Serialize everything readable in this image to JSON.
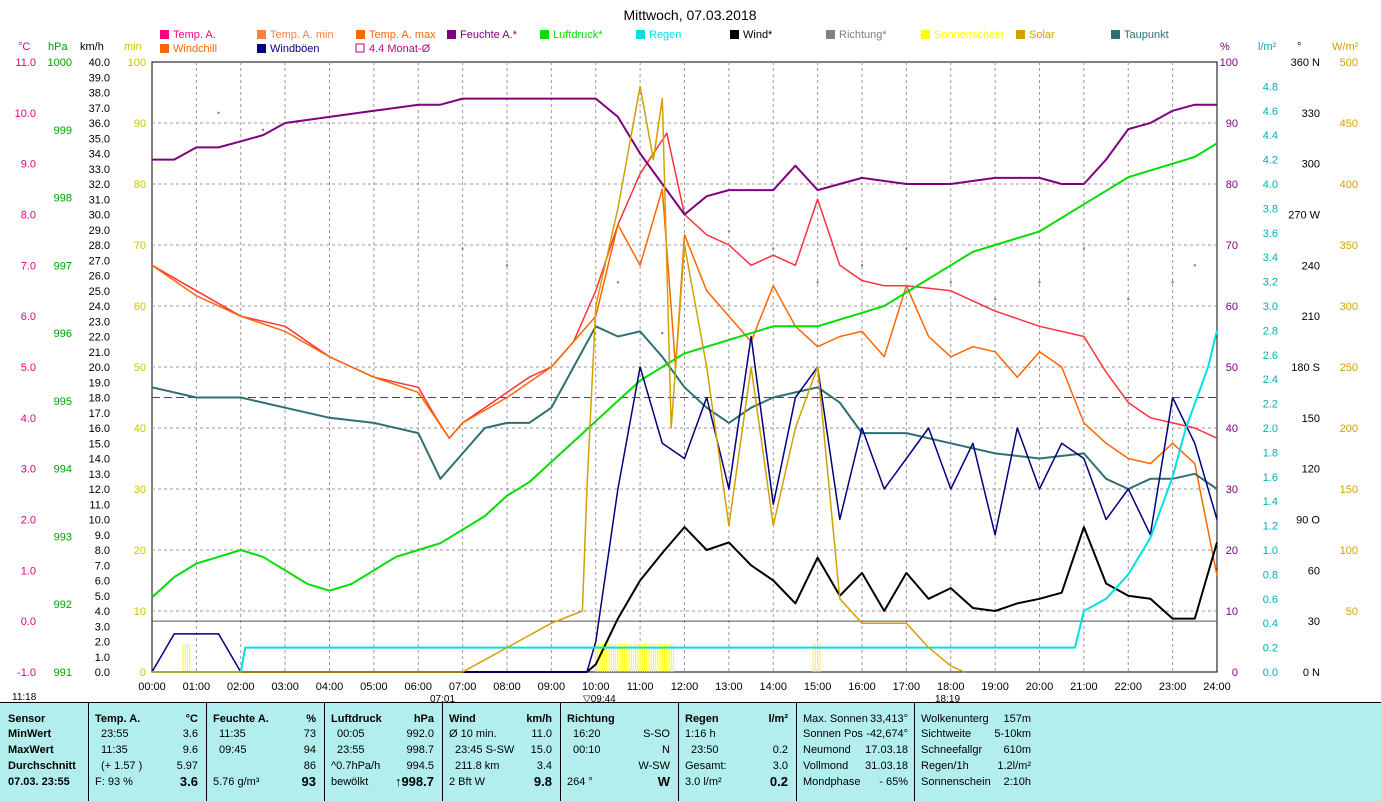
{
  "title": "Mittwoch, 07.03.2018",
  "legend": [
    {
      "label": "Temp. A.",
      "color": "#ff0080"
    },
    {
      "label": "Temp. A. min",
      "color": "#ff8040"
    },
    {
      "label": "Temp. A. max",
      "color": "#ff6600"
    },
    {
      "label": "Feuchte A.*",
      "color": "#800080"
    },
    {
      "label": "Luftdruck*",
      "color": "#00e000"
    },
    {
      "label": "Regen",
      "color": "#00e0e0"
    },
    {
      "label": "Wind*",
      "color": "#000000"
    },
    {
      "label": "Richtung*",
      "color": "#808080"
    },
    {
      "label": "Sonnenschein",
      "color": "#ffff00"
    },
    {
      "label": "Solar",
      "color": "#d4a000"
    },
    {
      "label": "Taupunkt",
      "color": "#2f6f6f"
    },
    {
      "label": "Windchill",
      "color": "#ff6600"
    },
    {
      "label": "Windböen",
      "color": "#000080"
    },
    {
      "label": "4.4 Monat-Ø",
      "color": "#c00080"
    }
  ],
  "axis_units": {
    "temp": "°C",
    "pressure": "hPa",
    "wind": "km/h",
    "sunshine": "min",
    "humidity": "%",
    "rain": "l/m²",
    "direction": "°",
    "solar": "W/m²"
  },
  "chart_data": {
    "type": "line",
    "title": "Mittwoch, 07.03.2018",
    "x_ticks": [
      "00:00",
      "01:00",
      "02:00",
      "03:00",
      "04:00",
      "05:00",
      "06:00",
      "07:00",
      "08:00",
      "09:00",
      "10:00",
      "11:00",
      "12:00",
      "13:00",
      "14:00",
      "15:00",
      "16:00",
      "17:00",
      "18:00",
      "19:00",
      "20:00",
      "21:00",
      "22:00",
      "23:00",
      "24:00"
    ],
    "xlim": [
      0,
      24
    ],
    "axes": {
      "temp": {
        "label": "°C",
        "range": [
          -1.0,
          11.0
        ],
        "ticks": [
          "11.0",
          "10.0",
          "9.0",
          "8.0",
          "7.0",
          "6.0",
          "5.0",
          "4.0",
          "3.0",
          "2.0",
          "1.0",
          "0.0",
          "-1.0"
        ]
      },
      "pressure": {
        "label": "hPa",
        "range": [
          991,
          1000
        ],
        "ticks": [
          "1000",
          "999",
          "998",
          "997",
          "996",
          "995",
          "994",
          "993",
          "992",
          "991"
        ]
      },
      "wind": {
        "label": "km/h",
        "range": [
          0,
          40
        ],
        "ticks": [
          "40.0",
          "39.0",
          "38.0",
          "37.0",
          "36.0",
          "35.0",
          "34.0",
          "33.0",
          "32.0",
          "31.0",
          "30.0",
          "29.0",
          "28.0",
          "27.0",
          "26.0",
          "25.0",
          "24.0",
          "23.0",
          "22.0",
          "21.0",
          "20.0",
          "19.0",
          "18.0",
          "17.0",
          "16.0",
          "15.0",
          "14.0",
          "13.0",
          "12.0",
          "11.0",
          "10.0",
          "9.0",
          "8.0",
          "7.0",
          "6.0",
          "5.0",
          "4.0",
          "3.0",
          "2.0",
          "1.0",
          "0.0"
        ]
      },
      "sunshine": {
        "label": "min",
        "range": [
          0,
          100
        ],
        "ticks": [
          "100",
          "90",
          "80",
          "70",
          "60",
          "50",
          "40",
          "30",
          "20",
          "10",
          "0"
        ]
      },
      "humidity": {
        "label": "%",
        "range": [
          0,
          100
        ],
        "ticks": [
          "100",
          "90",
          "80",
          "70",
          "60",
          "50",
          "40",
          "30",
          "20",
          "10",
          "0"
        ]
      },
      "rain": {
        "label": "l/m²",
        "range": [
          0,
          5.0
        ],
        "ticks": [
          "4.8",
          "4.6",
          "4.4",
          "4.2",
          "4.0",
          "3.8",
          "3.6",
          "3.4",
          "3.2",
          "3.0",
          "2.8",
          "2.6",
          "2.4",
          "2.2",
          "2.0",
          "1.8",
          "1.6",
          "1.4",
          "1.2",
          "1.0",
          "0.8",
          "0.6",
          "0.4",
          "0.2",
          "0.0"
        ]
      },
      "direction": {
        "label": "°",
        "range": [
          0,
          360
        ],
        "ticks": [
          "360 N",
          "330",
          "300",
          "270 W",
          "240",
          "210",
          "180 S",
          "150",
          "120",
          "90 O",
          "60",
          "30",
          "0 N"
        ]
      },
      "solar": {
        "label": "W/m²",
        "range": [
          0,
          500
        ],
        "ticks": [
          "500",
          "450",
          "400",
          "350",
          "300",
          "250",
          "200",
          "150",
          "100",
          "50"
        ]
      }
    },
    "reference_line": {
      "name": "4.4 Monat-Ø",
      "value": 4.4
    },
    "series": [
      {
        "name": "Temp. A.",
        "axis": "temp",
        "color": "#ff3040",
        "x": [
          0,
          1,
          2,
          3,
          3.5,
          4,
          4.5,
          5,
          5.5,
          6,
          6.4,
          6.7,
          7,
          7.5,
          8,
          8.5,
          9,
          9.5,
          10,
          10.5,
          11,
          11.6,
          12,
          12.5,
          13,
          13.5,
          14,
          14.5,
          15,
          15.5,
          16,
          16.5,
          17,
          18,
          19,
          20,
          21,
          21.5,
          22,
          22.5,
          23,
          23.5,
          24
        ],
        "y": [
          7.0,
          6.5,
          6.0,
          5.8,
          5.5,
          5.2,
          5.0,
          4.8,
          4.7,
          4.6,
          4.0,
          3.6,
          3.9,
          4.2,
          4.5,
          4.8,
          5.0,
          5.5,
          6.5,
          7.8,
          8.8,
          9.6,
          8.0,
          7.6,
          7.4,
          7.0,
          7.2,
          7.0,
          8.3,
          7.0,
          6.7,
          6.6,
          6.6,
          6.5,
          6.1,
          5.8,
          5.6,
          4.9,
          4.3,
          4.0,
          3.9,
          3.8,
          3.6
        ]
      },
      {
        "name": "Windchill",
        "axis": "temp",
        "color": "#ff6600",
        "x": [
          0,
          1,
          2,
          3,
          4,
          5,
          6,
          6.7,
          7,
          8,
          9,
          10,
          10.5,
          11,
          11.5,
          11.8,
          12,
          12.5,
          13,
          13.5,
          14,
          14.5,
          15,
          15.5,
          16,
          16.5,
          17,
          17.5,
          18,
          18.5,
          19,
          19.5,
          20,
          20.5,
          21,
          21.5,
          22,
          22.5,
          23,
          23.5,
          24
        ],
        "y": [
          7.0,
          6.4,
          6.0,
          5.7,
          5.2,
          4.8,
          4.5,
          3.6,
          3.9,
          4.4,
          5.0,
          6.0,
          7.8,
          7.0,
          8.5,
          5.0,
          7.6,
          6.5,
          6.0,
          5.5,
          6.6,
          5.8,
          5.4,
          5.6,
          5.7,
          5.2,
          6.6,
          5.6,
          5.2,
          5.4,
          5.3,
          4.8,
          5.3,
          5.0,
          3.9,
          3.5,
          3.2,
          3.1,
          3.5,
          3.1,
          0.9
        ]
      },
      {
        "name": "Taupunkt",
        "axis": "temp",
        "color": "#2f7070",
        "x": [
          0,
          1,
          2,
          3,
          4,
          5,
          6,
          6.5,
          7,
          7.5,
          8,
          8.5,
          9,
          9.5,
          10,
          10.5,
          11,
          11.5,
          12,
          12.5,
          13,
          13.5,
          14,
          14.5,
          15,
          15.5,
          16,
          17,
          18,
          19,
          20,
          21,
          21.5,
          22,
          22.5,
          23,
          23.5,
          24
        ],
        "y": [
          4.6,
          4.4,
          4.4,
          4.2,
          4.0,
          3.9,
          3.7,
          2.8,
          3.3,
          3.8,
          3.9,
          3.9,
          4.2,
          5.0,
          5.8,
          5.6,
          5.7,
          5.2,
          4.6,
          4.2,
          3.9,
          4.2,
          4.4,
          4.5,
          4.6,
          4.3,
          3.7,
          3.7,
          3.5,
          3.3,
          3.2,
          3.3,
          2.8,
          2.6,
          2.8,
          2.8,
          2.9,
          2.6
        ]
      },
      {
        "name": "Feuchte A.",
        "axis": "humidity",
        "color": "#800080",
        "x": [
          0,
          0.5,
          1,
          1.5,
          2,
          2.5,
          3,
          4,
          5,
          6,
          6.5,
          7,
          7.5,
          8,
          8.5,
          9,
          9.5,
          10,
          10.5,
          11,
          11.5,
          12,
          12.5,
          13,
          14,
          14.5,
          15,
          15.5,
          16,
          17,
          18,
          19,
          20,
          20.5,
          21,
          21.5,
          22,
          22.5,
          23,
          23.5,
          24
        ],
        "y": [
          84,
          84,
          86,
          86,
          87,
          88,
          90,
          91,
          92,
          93,
          93,
          94,
          94,
          94,
          94,
          94,
          94,
          94,
          91,
          85,
          80,
          75,
          78,
          79,
          79,
          83,
          79,
          80,
          81,
          80,
          80,
          81,
          81,
          80,
          80,
          84,
          89,
          90,
          92,
          93,
          93
        ]
      },
      {
        "name": "Luftdruck",
        "axis": "pressure",
        "color": "#00dd00",
        "x": [
          0,
          0.5,
          1,
          1.5,
          2,
          2.5,
          3,
          3.5,
          4,
          4.5,
          5,
          5.5,
          6,
          6.5,
          7,
          7.5,
          8,
          8.5,
          9,
          9.5,
          10,
          10.5,
          11,
          11.5,
          12,
          12.5,
          13,
          13.5,
          14,
          14.5,
          15,
          15.5,
          16,
          16.5,
          17,
          17.5,
          18,
          18.5,
          19,
          19.5,
          20,
          20.5,
          21,
          21.5,
          22,
          22.5,
          23,
          23.5,
          24
        ],
        "y": [
          992.1,
          992.4,
          992.6,
          992.7,
          992.8,
          992.7,
          992.5,
          992.3,
          992.2,
          992.3,
          992.5,
          992.7,
          992.8,
          992.9,
          993.1,
          993.3,
          993.6,
          993.8,
          994.1,
          994.4,
          994.7,
          995.0,
          995.3,
          995.5,
          995.7,
          995.8,
          995.9,
          996.0,
          996.1,
          996.1,
          996.1,
          996.2,
          996.3,
          996.4,
          996.6,
          996.8,
          997.0,
          997.2,
          997.3,
          997.4,
          997.5,
          997.7,
          997.9,
          998.1,
          998.3,
          998.4,
          998.5,
          998.6,
          998.8
        ]
      },
      {
        "name": "Wind",
        "axis": "wind",
        "color": "#000000",
        "x": [
          0,
          1,
          2,
          9.8,
          10,
          10.5,
          11,
          11.5,
          12,
          12.5,
          13,
          13.5,
          14,
          14.5,
          15,
          15.5,
          16,
          16.5,
          17,
          17.5,
          18,
          18.5,
          19,
          19.5,
          20,
          20.5,
          21,
          21.5,
          22,
          22.5,
          23,
          23.5,
          24
        ],
        "y": [
          0,
          0,
          0,
          0,
          0.5,
          3.5,
          6.0,
          7.8,
          9.5,
          8.0,
          8.5,
          7.0,
          6.0,
          4.5,
          7.5,
          5.0,
          6.5,
          4.0,
          6.5,
          4.8,
          5.5,
          4.2,
          4.0,
          4.5,
          4.8,
          5.2,
          9.5,
          5.8,
          5.0,
          4.8,
          3.5,
          3.5,
          8.5
        ]
      },
      {
        "name": "Windböen",
        "axis": "wind",
        "color": "#000080",
        "x": [
          0,
          0.5,
          1,
          1.5,
          2,
          9.8,
          10,
          10.5,
          11,
          11.5,
          12,
          12.5,
          13,
          13.5,
          14,
          14.5,
          15,
          15.5,
          16,
          16.5,
          17,
          17.5,
          18,
          18.5,
          19,
          19.5,
          20,
          20.5,
          21,
          21.5,
          22,
          22.5,
          23,
          23.5,
          24
        ],
        "y": [
          0,
          2.5,
          2.5,
          2.5,
          0,
          0,
          2.0,
          12.0,
          20.0,
          15.0,
          14.0,
          18.0,
          12.0,
          22.0,
          11.0,
          18.0,
          20.0,
          10.0,
          16.0,
          12.0,
          14.0,
          16.0,
          12.0,
          15.0,
          9.0,
          16.0,
          12.0,
          15.0,
          14.0,
          10.0,
          12.0,
          9.0,
          18.0,
          15.0,
          10.0
        ]
      },
      {
        "name": "Regen",
        "axis": "rain",
        "color": "#00e0e0",
        "x": [
          0,
          2.0,
          2.1,
          20.8,
          21.0,
          21.5,
          22.0,
          22.5,
          23.0,
          23.3,
          23.6,
          23.8,
          24
        ],
        "y": [
          0,
          0,
          0.2,
          0.2,
          0.5,
          0.6,
          0.8,
          1.1,
          1.6,
          2.0,
          2.3,
          2.5,
          2.8
        ]
      },
      {
        "name": "Solar",
        "axis": "solar",
        "color": "#d4a000",
        "x": [
          0,
          7,
          7.5,
          8,
          8.5,
          9,
          9.7,
          9.8,
          10,
          10.5,
          11,
          11.3,
          11.5,
          11.7,
          12,
          12.5,
          13,
          13.5,
          14,
          14.5,
          15,
          15.5,
          16,
          16.5,
          17,
          17.5,
          18,
          18.3
        ],
        "y": [
          0,
          0,
          10,
          20,
          30,
          40,
          50,
          150,
          300,
          380,
          480,
          420,
          470,
          200,
          350,
          250,
          120,
          250,
          120,
          200,
          250,
          60,
          40,
          40,
          40,
          20,
          5,
          0
        ]
      },
      {
        "name": "Richtung",
        "axis": "direction",
        "color": "#808080",
        "x": [
          1.5,
          2.5,
          7.0,
          8.0,
          10.5,
          11.5,
          13.0,
          14.0,
          15.0,
          16.0,
          17.0,
          18.0,
          19.0,
          20.0,
          21.0,
          22.0,
          23.0,
          23.5
        ],
        "y": [
          330,
          320,
          250,
          240,
          230,
          200,
          260,
          250,
          230,
          240,
          250,
          230,
          220,
          230,
          250,
          220,
          230,
          240
        ]
      }
    ],
    "sunshine_bars": [
      {
        "from": 10.0,
        "to": 11.8,
        "value": 5
      },
      {
        "from": 14.9,
        "to": 15.1,
        "value": 5
      },
      {
        "from": 0.7,
        "to": 0.9,
        "value": 0
      }
    ],
    "time_markers": {
      "sunrise": "07:01",
      "sunset": "18:19",
      "time_start": "11:18",
      "marker": "09:44"
    }
  },
  "stats": {
    "sensor": {
      "header": "Sensor",
      "rows": [
        "MinWert",
        "MaxWert",
        "Durchschnitt",
        "07.03. 23:55"
      ]
    },
    "temp": {
      "header": "Temp. A.",
      "unit": "°C",
      "rows": [
        [
          "23:55",
          "3.6"
        ],
        [
          "11:35",
          "9.6"
        ],
        [
          "(+ 1.57 )",
          "5.97"
        ],
        [
          "F: 93 %",
          "3.6"
        ]
      ]
    },
    "humid": {
      "header": "Feuchte A.",
      "unit": "%",
      "rows": [
        [
          "11:35",
          "73"
        ],
        [
          "09:45",
          "94"
        ],
        [
          "",
          "86"
        ],
        [
          "5.76 g/m³",
          "93"
        ]
      ]
    },
    "pressure": {
      "header": "Luftdruck",
      "unit": "hPa",
      "rows": [
        [
          "00:05",
          "992.0"
        ],
        [
          "23:55",
          "998.7"
        ],
        [
          "^0.7hPa/h",
          "994.5"
        ],
        [
          "bewölkt",
          "↑998.7"
        ]
      ]
    },
    "wind": {
      "header": "Wind",
      "unit": "km/h",
      "rows": [
        [
          "Ø 10 min.",
          "11.0"
        ],
        [
          "23:45  S-SW",
          "15.0"
        ],
        [
          "211.8 km",
          "3.4"
        ],
        [
          "2 Bft W",
          "9.8"
        ]
      ]
    },
    "direction": {
      "header": "Richtung",
      "rows": [
        [
          "16:20",
          "S-SO"
        ],
        [
          "00:10",
          "N"
        ],
        [
          "",
          "W-SW"
        ],
        [
          "264 °",
          "W"
        ]
      ]
    },
    "rain": {
      "header": "Regen",
      "unit": "l/m²",
      "rows": [
        [
          "1:16 h",
          ""
        ],
        [
          "23:50",
          "0.2"
        ],
        [
          "Gesamt:",
          "3.0"
        ],
        [
          "3.0 l/m²",
          "0.2"
        ]
      ]
    },
    "sun": {
      "rows": [
        [
          "Max. Sonnen",
          "33,413°"
        ],
        [
          "Sonnen Pos",
          "-42,674°"
        ],
        [
          "Neumond",
          "17.03.18"
        ],
        [
          "Vollmond",
          "31.03.18"
        ],
        [
          "Mondphase",
          "- 65%"
        ]
      ]
    },
    "cloud": {
      "rows": [
        [
          "Wolkenunterg",
          "157m"
        ],
        [
          "Sichtweite",
          "5-10km"
        ],
        [
          "Schneefallgr",
          "610m"
        ],
        [
          "Regen/1h",
          "1.2l/m²"
        ],
        [
          "Sonnenschein",
          "2:10h"
        ]
      ]
    }
  }
}
